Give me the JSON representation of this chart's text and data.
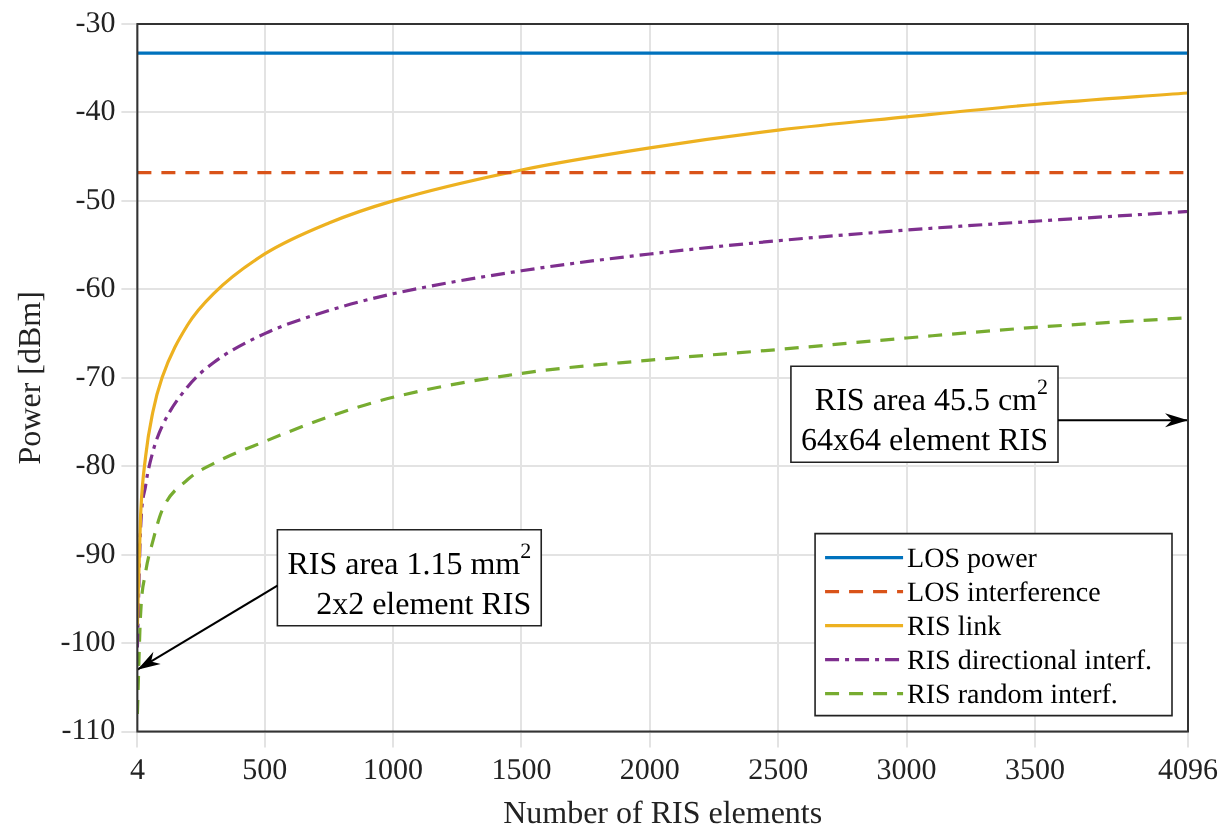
{
  "chart_data": {
    "type": "line",
    "xlabel": "Number of RIS elements",
    "ylabel": "Power [dBm]",
    "x": [
      4,
      16,
      36,
      64,
      100,
      200,
      300,
      500,
      750,
      1000,
      1500,
      2000,
      2500,
      3000,
      3500,
      4096
    ],
    "series": [
      {
        "name": "LOS power",
        "color": "#0072bd",
        "line_style": "solid",
        "values": [
          -33.3,
          -33.3,
          -33.3,
          -33.3,
          -33.3,
          -33.3,
          -33.3,
          -33.3,
          -33.3,
          -33.3,
          -33.3,
          -33.3,
          -33.3,
          -33.3,
          -33.3,
          -33.3
        ]
      },
      {
        "name": "LOS interference",
        "color": "#d95319",
        "line_style": "dashed",
        "values": [
          -46.8,
          -46.8,
          -46.8,
          -46.8,
          -46.8,
          -46.8,
          -46.8,
          -46.8,
          -46.8,
          -46.8,
          -46.8,
          -46.8,
          -46.8,
          -46.8,
          -46.8,
          -46.8
        ]
      },
      {
        "name": "RIS link",
        "color": "#edb120",
        "line_style": "solid",
        "values": [
          -98.0,
          -85.9,
          -78.9,
          -73.9,
          -70.0,
          -64.0,
          -60.5,
          -56.0,
          -52.5,
          -50.0,
          -46.5,
          -44.0,
          -42.0,
          -40.5,
          -39.1,
          -37.8
        ]
      },
      {
        "name": "RIS directional interf.",
        "color": "#7e2f8e",
        "line_style": "dashdot",
        "values": [
          -100.5,
          -87.4,
          -82.2,
          -78.4,
          -75.5,
          -71.0,
          -68.3,
          -65.0,
          -62.4,
          -60.5,
          -57.9,
          -56.0,
          -54.5,
          -53.3,
          -52.3,
          -51.2
        ]
      },
      {
        "name": "RIS random interf.",
        "color": "#77ac30",
        "line_style": "dashed",
        "values": [
          -108,
          -97,
          -92,
          -88.5,
          -85,
          -81.5,
          -79.7,
          -77.2,
          -74.4,
          -72.2,
          -69.5,
          -68.0,
          -66.8,
          -65.5,
          -64.3,
          -63.2
        ]
      }
    ],
    "xlim": [
      4,
      4096
    ],
    "xticks": [
      4,
      500,
      1000,
      1500,
      2000,
      2500,
      3000,
      3500,
      4096
    ],
    "ylim": [
      -110,
      -30
    ],
    "yticks": [
      -110,
      -100,
      -90,
      -80,
      -70,
      -60,
      -50,
      -40,
      -30
    ],
    "grid": true,
    "legend": "bottom right",
    "marker": "none",
    "annotations": [
      {
        "text": "RIS area 1.15 mm$^{2}$\n2x2 element RIS",
        "x": 4,
        "y": -103
      },
      "RIS area 45.5 cm$^{2}$\n64x64 element RIS"
    ]
  }
}
